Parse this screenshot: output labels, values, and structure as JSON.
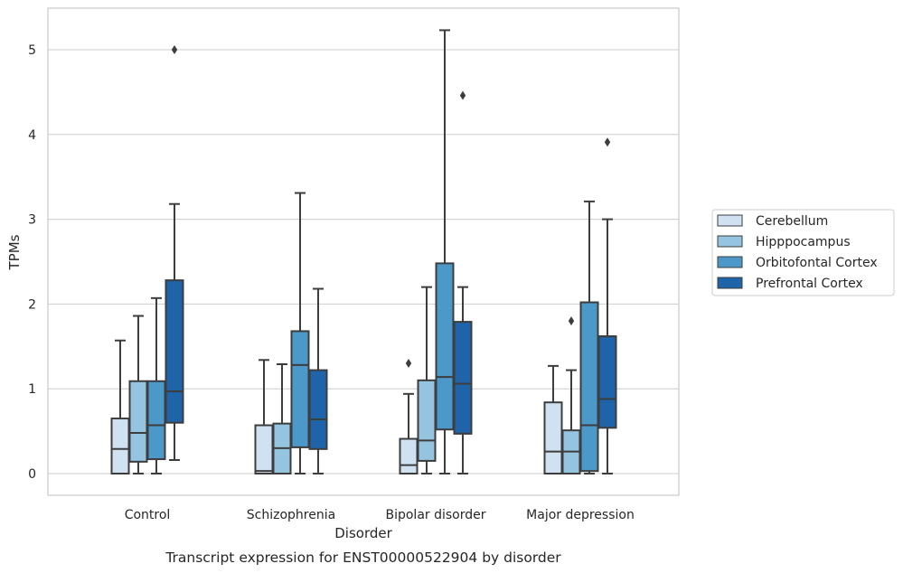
{
  "chart_data": {
    "type": "box",
    "caption": "Transcript expression for ENST00000522904 by disorder",
    "xlabel": "Disorder",
    "ylabel": "TPMs",
    "ylim": [
      -0.25,
      5.5
    ],
    "yticks": [
      "0",
      "1",
      "2",
      "3",
      "4",
      "5"
    ],
    "grid": "horizontal",
    "legend_position": "right",
    "categories": [
      "Control",
      "Schizophrenia",
      "Bipolar disorder",
      "Major depression"
    ],
    "series": [
      {
        "name": "Cerebellum",
        "color": "#d0e1f2",
        "boxes": [
          {
            "low": 0,
            "q1": 0,
            "median": 0.29,
            "q3": 0.65,
            "high": 1.57,
            "outliers": []
          },
          {
            "low": 0,
            "q1": 0,
            "median": 0.03,
            "q3": 0.57,
            "high": 1.34,
            "outliers": []
          },
          {
            "low": 0,
            "q1": 0,
            "median": 0.1,
            "q3": 0.41,
            "high": 0.94,
            "outliers": [
              1.3
            ]
          },
          {
            "low": 0,
            "q1": 0,
            "median": 0.26,
            "q3": 0.84,
            "high": 1.27,
            "outliers": []
          }
        ]
      },
      {
        "name": "Hipppocampus",
        "color": "#94c4df",
        "boxes": [
          {
            "low": 0,
            "q1": 0.14,
            "median": 0.48,
            "q3": 1.09,
            "high": 1.86,
            "outliers": []
          },
          {
            "low": 0,
            "q1": 0,
            "median": 0.3,
            "q3": 0.59,
            "high": 1.29,
            "outliers": []
          },
          {
            "low": 0,
            "q1": 0.15,
            "median": 0.39,
            "q3": 1.1,
            "high": 2.2,
            "outliers": []
          },
          {
            "low": 0,
            "q1": 0,
            "median": 0.26,
            "q3": 0.51,
            "high": 1.22,
            "outliers": [
              1.8
            ]
          }
        ]
      },
      {
        "name": "Orbitofontal Cortex",
        "color": "#4b98c9",
        "boxes": [
          {
            "low": 0,
            "q1": 0.17,
            "median": 0.57,
            "q3": 1.09,
            "high": 2.07,
            "outliers": []
          },
          {
            "low": 0,
            "q1": 0.31,
            "median": 1.28,
            "q3": 1.68,
            "high": 3.31,
            "outliers": []
          },
          {
            "low": 0,
            "q1": 0.52,
            "median": 1.14,
            "q3": 2.48,
            "high": 5.23,
            "outliers": []
          },
          {
            "low": 0,
            "q1": 0.03,
            "median": 0.57,
            "q3": 2.02,
            "high": 3.21,
            "outliers": []
          }
        ]
      },
      {
        "name": "Prefrontal Cortex",
        "color": "#1f63a8",
        "boxes": [
          {
            "low": 0.16,
            "q1": 0.6,
            "median": 0.97,
            "q3": 2.28,
            "high": 3.18,
            "outliers": [
              5.0
            ]
          },
          {
            "low": 0,
            "q1": 0.29,
            "median": 0.64,
            "q3": 1.22,
            "high": 2.18,
            "outliers": []
          },
          {
            "low": 0,
            "q1": 0.47,
            "median": 1.06,
            "q3": 1.79,
            "high": 2.2,
            "outliers": [
              4.46
            ]
          },
          {
            "low": 0,
            "q1": 0.54,
            "median": 0.88,
            "q3": 1.62,
            "high": 3.0,
            "outliers": [
              3.91
            ]
          }
        ]
      }
    ]
  }
}
